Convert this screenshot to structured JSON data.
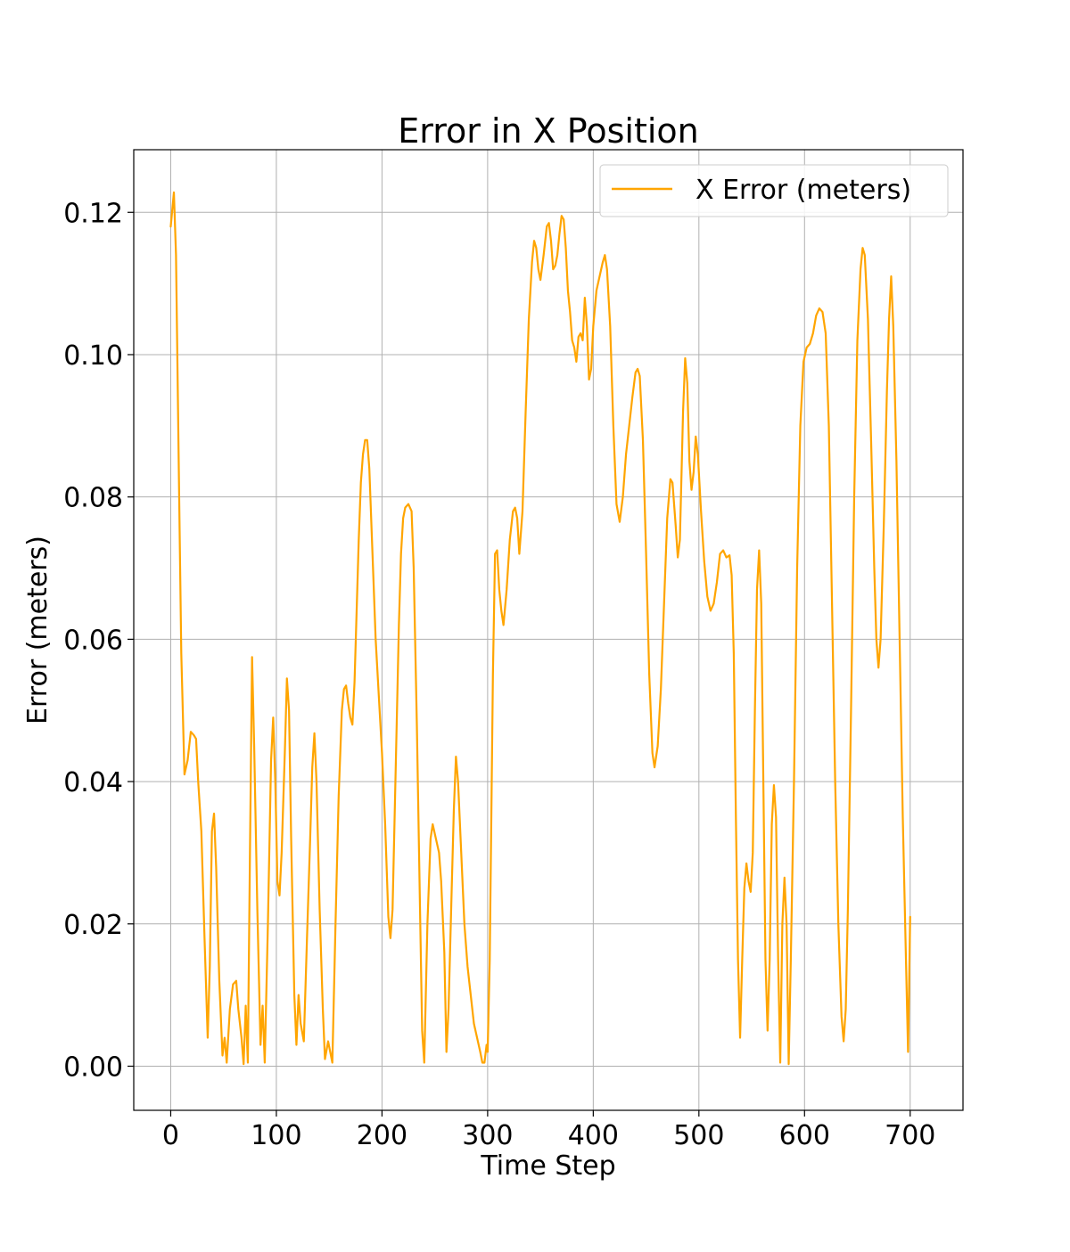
{
  "chart_data": {
    "type": "line",
    "title": "Error in X Position",
    "xlabel": "Time Step",
    "ylabel": "Error (meters)",
    "xlim": [
      -35,
      750
    ],
    "ylim": [
      -0.0062,
      0.1288
    ],
    "xticks": [
      0,
      100,
      200,
      300,
      400,
      500,
      600,
      700
    ],
    "xtick_labels": [
      "0",
      "100",
      "200",
      "300",
      "400",
      "500",
      "600",
      "700"
    ],
    "yticks": [
      0.0,
      0.02,
      0.04,
      0.06,
      0.08,
      0.1,
      0.12
    ],
    "ytick_labels": [
      "0.00",
      "0.02",
      "0.04",
      "0.06",
      "0.08",
      "0.10",
      "0.12"
    ],
    "grid": true,
    "legend_position": "top-right",
    "colors": {
      "line": "#ffa500"
    },
    "series": [
      {
        "name": "X Error (meters)",
        "color": "#ffa500",
        "points": [
          [
            0,
            0.118
          ],
          [
            3,
            0.1228
          ],
          [
            5,
            0.114
          ],
          [
            8,
            0.08
          ],
          [
            10,
            0.058
          ],
          [
            13,
            0.041
          ],
          [
            16,
            0.043
          ],
          [
            19,
            0.047
          ],
          [
            22,
            0.0465
          ],
          [
            24,
            0.046
          ],
          [
            26,
            0.04
          ],
          [
            29,
            0.033
          ],
          [
            32,
            0.018
          ],
          [
            35,
            0.004
          ],
          [
            37,
            0.014
          ],
          [
            39,
            0.033
          ],
          [
            41,
            0.0355
          ],
          [
            43,
            0.028
          ],
          [
            46,
            0.012
          ],
          [
            49,
            0.0015
          ],
          [
            51,
            0.004
          ],
          [
            53,
            0.0005
          ],
          [
            56,
            0.008
          ],
          [
            59,
            0.0115
          ],
          [
            62,
            0.012
          ],
          [
            64,
            0.008
          ],
          [
            67,
            0.004
          ],
          [
            69,
            0.0003
          ],
          [
            71,
            0.0085
          ],
          [
            73,
            0.0005
          ],
          [
            75,
            0.03
          ],
          [
            77,
            0.0575
          ],
          [
            79,
            0.045
          ],
          [
            82,
            0.022
          ],
          [
            85,
            0.003
          ],
          [
            87,
            0.0085
          ],
          [
            89,
            0.0005
          ],
          [
            92,
            0.02
          ],
          [
            95,
            0.043
          ],
          [
            97,
            0.049
          ],
          [
            99,
            0.04
          ],
          [
            101,
            0.026
          ],
          [
            103,
            0.024
          ],
          [
            105,
            0.03
          ],
          [
            108,
            0.044
          ],
          [
            110,
            0.0545
          ],
          [
            112,
            0.05
          ],
          [
            114,
            0.032
          ],
          [
            117,
            0.01
          ],
          [
            119,
            0.003
          ],
          [
            121,
            0.01
          ],
          [
            123,
            0.006
          ],
          [
            126,
            0.0035
          ],
          [
            129,
            0.018
          ],
          [
            132,
            0.032
          ],
          [
            134,
            0.042
          ],
          [
            136,
            0.0468
          ],
          [
            138,
            0.04
          ],
          [
            141,
            0.022
          ],
          [
            144,
            0.008
          ],
          [
            146,
            0.001
          ],
          [
            149,
            0.0035
          ],
          [
            151,
            0.002
          ],
          [
            153,
            0.0005
          ],
          [
            156,
            0.02
          ],
          [
            159,
            0.038
          ],
          [
            162,
            0.05
          ],
          [
            164,
            0.053
          ],
          [
            166,
            0.0535
          ],
          [
            168,
            0.051
          ],
          [
            170,
            0.049
          ],
          [
            172,
            0.048
          ],
          [
            174,
            0.054
          ],
          [
            176,
            0.064
          ],
          [
            178,
            0.074
          ],
          [
            180,
            0.082
          ],
          [
            182,
            0.086
          ],
          [
            184,
            0.088
          ],
          [
            186,
            0.088
          ],
          [
            188,
            0.084
          ],
          [
            191,
            0.072
          ],
          [
            194,
            0.06
          ],
          [
            197,
            0.052
          ],
          [
            200,
            0.044
          ],
          [
            203,
            0.034
          ],
          [
            206,
            0.021
          ],
          [
            208,
            0.018
          ],
          [
            210,
            0.022
          ],
          [
            213,
            0.042
          ],
          [
            216,
            0.062
          ],
          [
            218,
            0.072
          ],
          [
            220,
            0.077
          ],
          [
            222,
            0.0785
          ],
          [
            225,
            0.079
          ],
          [
            228,
            0.078
          ],
          [
            230,
            0.07
          ],
          [
            233,
            0.048
          ],
          [
            236,
            0.022
          ],
          [
            238,
            0.005
          ],
          [
            240,
            0.0005
          ],
          [
            243,
            0.02
          ],
          [
            246,
            0.032
          ],
          [
            248,
            0.034
          ],
          [
            251,
            0.032
          ],
          [
            254,
            0.03
          ],
          [
            256,
            0.026
          ],
          [
            259,
            0.016
          ],
          [
            261,
            0.002
          ],
          [
            263,
            0.008
          ],
          [
            266,
            0.025
          ],
          [
            268,
            0.036
          ],
          [
            270,
            0.0435
          ],
          [
            272,
            0.04
          ],
          [
            275,
            0.03
          ],
          [
            278,
            0.02
          ],
          [
            281,
            0.014
          ],
          [
            284,
            0.01
          ],
          [
            287,
            0.006
          ],
          [
            290,
            0.004
          ],
          [
            293,
            0.002
          ],
          [
            295,
            0.0005
          ],
          [
            297,
            0.0005
          ],
          [
            299,
            0.003
          ],
          [
            300,
            0.002
          ],
          [
            302,
            0.015
          ],
          [
            305,
            0.055
          ],
          [
            307,
            0.072
          ],
          [
            309,
            0.0725
          ],
          [
            311,
            0.067
          ],
          [
            313,
            0.064
          ],
          [
            315,
            0.062
          ],
          [
            318,
            0.067
          ],
          [
            321,
            0.074
          ],
          [
            324,
            0.078
          ],
          [
            326,
            0.0785
          ],
          [
            328,
            0.077
          ],
          [
            330,
            0.072
          ],
          [
            333,
            0.078
          ],
          [
            336,
            0.092
          ],
          [
            339,
            0.105
          ],
          [
            342,
            0.113
          ],
          [
            344,
            0.116
          ],
          [
            346,
            0.115
          ],
          [
            348,
            0.112
          ],
          [
            350,
            0.1105
          ],
          [
            353,
            0.114
          ],
          [
            356,
            0.118
          ],
          [
            358,
            0.1185
          ],
          [
            360,
            0.116
          ],
          [
            362,
            0.112
          ],
          [
            364,
            0.1125
          ],
          [
            366,
            0.114
          ],
          [
            368,
            0.117
          ],
          [
            370,
            0.1195
          ],
          [
            372,
            0.119
          ],
          [
            374,
            0.115
          ],
          [
            376,
            0.109
          ],
          [
            378,
            0.106
          ],
          [
            380,
            0.102
          ],
          [
            382,
            0.101
          ],
          [
            384,
            0.099
          ],
          [
            386,
            0.1025
          ],
          [
            388,
            0.103
          ],
          [
            390,
            0.102
          ],
          [
            392,
            0.108
          ],
          [
            394,
            0.104
          ],
          [
            396,
            0.0965
          ],
          [
            398,
            0.098
          ],
          [
            400,
            0.104
          ],
          [
            403,
            0.109
          ],
          [
            406,
            0.111
          ],
          [
            409,
            0.113
          ],
          [
            411,
            0.114
          ],
          [
            413,
            0.112
          ],
          [
            416,
            0.104
          ],
          [
            419,
            0.09
          ],
          [
            422,
            0.079
          ],
          [
            425,
            0.0765
          ],
          [
            428,
            0.08
          ],
          [
            431,
            0.086
          ],
          [
            434,
            0.09
          ],
          [
            437,
            0.094
          ],
          [
            440,
            0.0975
          ],
          [
            442,
            0.098
          ],
          [
            444,
            0.097
          ],
          [
            447,
            0.088
          ],
          [
            450,
            0.072
          ],
          [
            453,
            0.055
          ],
          [
            456,
            0.044
          ],
          [
            458,
            0.042
          ],
          [
            461,
            0.045
          ],
          [
            464,
            0.053
          ],
          [
            467,
            0.065
          ],
          [
            470,
            0.077
          ],
          [
            473,
            0.0825
          ],
          [
            475,
            0.082
          ],
          [
            478,
            0.076
          ],
          [
            480,
            0.0715
          ],
          [
            482,
            0.074
          ],
          [
            485,
            0.092
          ],
          [
            487,
            0.0995
          ],
          [
            489,
            0.096
          ],
          [
            491,
            0.085
          ],
          [
            493,
            0.081
          ],
          [
            495,
            0.0835
          ],
          [
            497,
            0.0885
          ],
          [
            499,
            0.086
          ],
          [
            502,
            0.078
          ],
          [
            505,
            0.071
          ],
          [
            508,
            0.066
          ],
          [
            511,
            0.064
          ],
          [
            514,
            0.065
          ],
          [
            517,
            0.068
          ],
          [
            520,
            0.072
          ],
          [
            523,
            0.0725
          ],
          [
            526,
            0.0715
          ],
          [
            529,
            0.0718
          ],
          [
            531,
            0.069
          ],
          [
            533,
            0.058
          ],
          [
            535,
            0.035
          ],
          [
            537,
            0.015
          ],
          [
            539,
            0.004
          ],
          [
            541,
            0.015
          ],
          [
            543,
            0.025
          ],
          [
            545,
            0.0285
          ],
          [
            547,
            0.026
          ],
          [
            549,
            0.0245
          ],
          [
            551,
            0.03
          ],
          [
            553,
            0.05
          ],
          [
            555,
            0.067
          ],
          [
            557,
            0.0725
          ],
          [
            559,
            0.065
          ],
          [
            561,
            0.04
          ],
          [
            563,
            0.015
          ],
          [
            565,
            0.005
          ],
          [
            567,
            0.015
          ],
          [
            569,
            0.034
          ],
          [
            571,
            0.0395
          ],
          [
            573,
            0.035
          ],
          [
            575,
            0.015
          ],
          [
            577,
            0.0005
          ],
          [
            579,
            0.02
          ],
          [
            581,
            0.0265
          ],
          [
            583,
            0.02
          ],
          [
            585,
            0.0003
          ],
          [
            587,
            0.015
          ],
          [
            590,
            0.04
          ],
          [
            593,
            0.07
          ],
          [
            596,
            0.09
          ],
          [
            599,
            0.099
          ],
          [
            602,
            0.101
          ],
          [
            605,
            0.1015
          ],
          [
            608,
            0.103
          ],
          [
            611,
            0.1055
          ],
          [
            614,
            0.1065
          ],
          [
            617,
            0.106
          ],
          [
            620,
            0.103
          ],
          [
            623,
            0.09
          ],
          [
            626,
            0.065
          ],
          [
            629,
            0.04
          ],
          [
            632,
            0.02
          ],
          [
            635,
            0.007
          ],
          [
            637,
            0.0035
          ],
          [
            639,
            0.008
          ],
          [
            641,
            0.022
          ],
          [
            644,
            0.05
          ],
          [
            647,
            0.08
          ],
          [
            650,
            0.102
          ],
          [
            653,
            0.112
          ],
          [
            655,
            0.115
          ],
          [
            657,
            0.114
          ],
          [
            660,
            0.105
          ],
          [
            663,
            0.088
          ],
          [
            666,
            0.07
          ],
          [
            668,
            0.06
          ],
          [
            670,
            0.056
          ],
          [
            672,
            0.06
          ],
          [
            675,
            0.076
          ],
          [
            678,
            0.095
          ],
          [
            680,
            0.105
          ],
          [
            682,
            0.111
          ],
          [
            684,
            0.104
          ],
          [
            687,
            0.085
          ],
          [
            690,
            0.06
          ],
          [
            693,
            0.035
          ],
          [
            696,
            0.015
          ],
          [
            698,
            0.002
          ],
          [
            700,
            0.021
          ]
        ]
      }
    ]
  }
}
